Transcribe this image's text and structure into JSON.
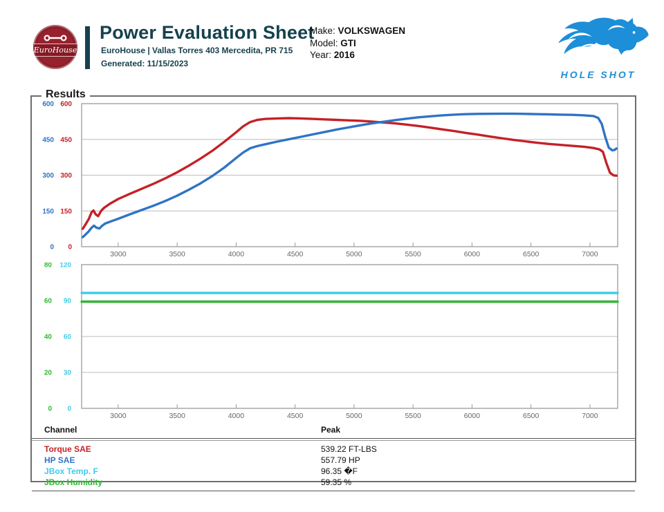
{
  "header": {
    "logo_text": "EuroHouse",
    "title": "Power Evaluation Sheet",
    "subtitle": "EuroHouse | Vallas Torres 403 Mercedita, PR 715",
    "generated": "Generated: 11/15/2023",
    "vehicle": [
      {
        "label": "Make:",
        "value": "VOLKSWAGEN"
      },
      {
        "label": "Model:",
        "value": "GTI"
      },
      {
        "label": "Year:",
        "value": "2016"
      }
    ],
    "brand": "HOLE SHOT"
  },
  "results": {
    "legend": "Results"
  },
  "colors": {
    "torque": "#c42127",
    "hp": "#2f73c5",
    "temp": "#3ecde8",
    "humidity": "#2eb933",
    "teal": "#16414e",
    "brand_blue": "#1d8ed8",
    "logo_red": "#97212d"
  },
  "chart_data": [
    {
      "type": "line",
      "x_range": [
        2690,
        7235
      ],
      "x_ticks": [
        3000,
        3500,
        4000,
        4500,
        5000,
        5500,
        6000,
        6500,
        7000
      ],
      "grid": true,
      "axes": [
        {
          "name": "HP",
          "color": "#2f73c5",
          "min": 0,
          "max": 600,
          "ticks": [
            0,
            150,
            300,
            450,
            600
          ]
        },
        {
          "name": "Torque FT-LBS",
          "color": "#c42127",
          "min": 0,
          "max": 600,
          "ticks": [
            0,
            150,
            300,
            450,
            600
          ]
        }
      ],
      "series": [
        {
          "name": "Torque SAE",
          "color": "#c42127",
          "axis": 1,
          "peak": 539.22,
          "points": [
            [
              2700,
              75
            ],
            [
              2725,
              95
            ],
            [
              2750,
              115
            ],
            [
              2775,
              145
            ],
            [
              2790,
              152
            ],
            [
              2810,
              135
            ],
            [
              2830,
              128
            ],
            [
              2855,
              150
            ],
            [
              2880,
              163
            ],
            [
              2930,
              180
            ],
            [
              3000,
              200
            ],
            [
              3100,
              222
            ],
            [
              3200,
              243
            ],
            [
              3300,
              264
            ],
            [
              3400,
              287
            ],
            [
              3500,
              312
            ],
            [
              3600,
              340
            ],
            [
              3700,
              370
            ],
            [
              3800,
              403
            ],
            [
              3900,
              440
            ],
            [
              4000,
              480
            ],
            [
              4060,
              505
            ],
            [
              4120,
              523
            ],
            [
              4180,
              532
            ],
            [
              4250,
              536
            ],
            [
              4350,
              538
            ],
            [
              4450,
              539.22
            ],
            [
              4550,
              538
            ],
            [
              4650,
              536
            ],
            [
              4750,
              534
            ],
            [
              4850,
              532
            ],
            [
              4950,
              530
            ],
            [
              5050,
              528
            ],
            [
              5150,
              525
            ],
            [
              5250,
              521
            ],
            [
              5350,
              517
            ],
            [
              5450,
              512
            ],
            [
              5550,
              506
            ],
            [
              5650,
              499
            ],
            [
              5750,
              492
            ],
            [
              5850,
              485
            ],
            [
              5950,
              477
            ],
            [
              6050,
              470
            ],
            [
              6150,
              462
            ],
            [
              6250,
              455
            ],
            [
              6350,
              448
            ],
            [
              6450,
              442
            ],
            [
              6550,
              436
            ],
            [
              6650,
              431
            ],
            [
              6750,
              427
            ],
            [
              6850,
              423
            ],
            [
              6950,
              419
            ],
            [
              7030,
              414
            ],
            [
              7080,
              408
            ],
            [
              7110,
              398
            ],
            [
              7140,
              350
            ],
            [
              7170,
              310
            ],
            [
              7200,
              299
            ],
            [
              7225,
              298
            ]
          ]
        },
        {
          "name": "HP SAE",
          "color": "#2f73c5",
          "axis": 0,
          "peak": 557.79,
          "points": [
            [
              2700,
              40
            ],
            [
              2725,
              52
            ],
            [
              2750,
              64
            ],
            [
              2775,
              80
            ],
            [
              2795,
              88
            ],
            [
              2815,
              80
            ],
            [
              2840,
              76
            ],
            [
              2865,
              88
            ],
            [
              2890,
              97
            ],
            [
              2950,
              108
            ],
            [
              3000,
              117
            ],
            [
              3100,
              136
            ],
            [
              3200,
              154
            ],
            [
              3300,
              172
            ],
            [
              3400,
              192
            ],
            [
              3500,
              214
            ],
            [
              3600,
              239
            ],
            [
              3700,
              266
            ],
            [
              3800,
              297
            ],
            [
              3900,
              332
            ],
            [
              4000,
              372
            ],
            [
              4060,
              395
            ],
            [
              4120,
              413
            ],
            [
              4180,
              422
            ],
            [
              4250,
              430
            ],
            [
              4350,
              441
            ],
            [
              4450,
              451
            ],
            [
              4550,
              461
            ],
            [
              4650,
              471
            ],
            [
              4750,
              481
            ],
            [
              4850,
              491
            ],
            [
              4950,
              500
            ],
            [
              5050,
              509
            ],
            [
              5150,
              517
            ],
            [
              5250,
              524
            ],
            [
              5350,
              531
            ],
            [
              5450,
              537
            ],
            [
              5550,
              543
            ],
            [
              5650,
              547
            ],
            [
              5750,
              551
            ],
            [
              5850,
              554
            ],
            [
              5950,
              556
            ],
            [
              6050,
              557
            ],
            [
              6150,
              557.5
            ],
            [
              6250,
              557.79
            ],
            [
              6350,
              557.6
            ],
            [
              6450,
              557
            ],
            [
              6550,
              556
            ],
            [
              6650,
              555
            ],
            [
              6750,
              554
            ],
            [
              6850,
              553
            ],
            [
              6950,
              551
            ],
            [
              7030,
              548
            ],
            [
              7070,
              540
            ],
            [
              7100,
              515
            ],
            [
              7130,
              460
            ],
            [
              7160,
              415
            ],
            [
              7190,
              404
            ],
            [
              7210,
              406
            ],
            [
              7225,
              412
            ]
          ]
        }
      ]
    },
    {
      "type": "line",
      "x_range": [
        2690,
        7235
      ],
      "x_ticks": [
        3000,
        3500,
        4000,
        4500,
        5000,
        5500,
        6000,
        6500,
        7000
      ],
      "grid": true,
      "axes": [
        {
          "name": "JBox Humidity",
          "color": "#2eb933",
          "min": 0,
          "max": 80,
          "ticks": [
            0,
            20,
            40,
            60,
            80
          ]
        },
        {
          "name": "JBox Temp. F",
          "color": "#3ecde8",
          "min": 0,
          "max": 120,
          "ticks": [
            0,
            30,
            60,
            90,
            120
          ]
        }
      ],
      "series": [
        {
          "name": "JBox Temp. F",
          "color": "#3ecde8",
          "axis": 1,
          "peak": 96.35,
          "points": [
            [
              2690,
              96.35
            ],
            [
              7235,
              96.35
            ]
          ]
        },
        {
          "name": "JBox Humidity",
          "color": "#2eb933",
          "axis": 0,
          "peak": 59.35,
          "points": [
            [
              2690,
              59.35
            ],
            [
              7235,
              59.35
            ]
          ]
        }
      ]
    }
  ],
  "table": {
    "headers": [
      "Channel",
      "Peak"
    ],
    "rows": [
      {
        "channel": "Torque SAE",
        "peak": "539.22 FT-LBS",
        "color": "torque"
      },
      {
        "channel": "HP SAE",
        "peak": "557.79 HP",
        "color": "hp"
      },
      {
        "channel": "JBox Temp. F",
        "peak": "96.35 �F",
        "color": "temp"
      },
      {
        "channel": "JBox Humidity",
        "peak": "59.35 %",
        "color": "humidity"
      }
    ]
  }
}
